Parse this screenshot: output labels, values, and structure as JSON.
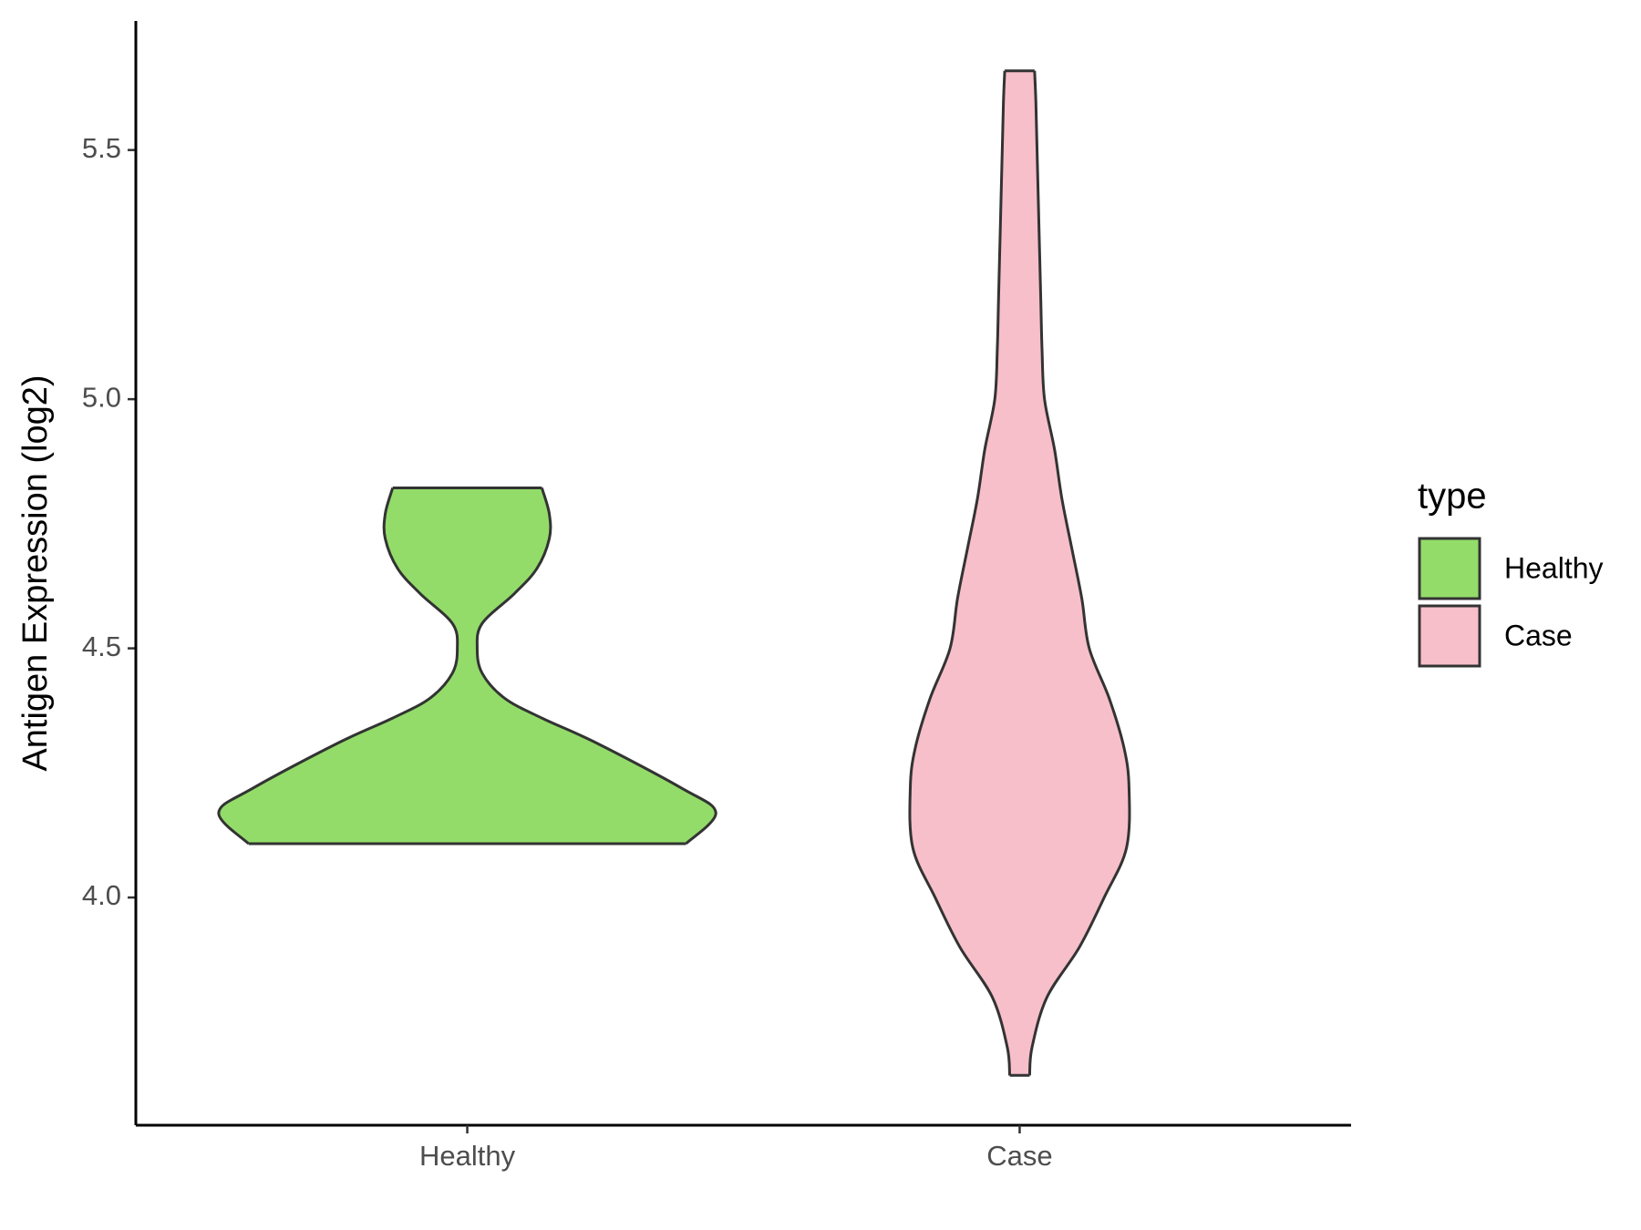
{
  "chart_data": {
    "type": "violin",
    "y_label": "Antigen Expression (log2)",
    "categories": [
      "Healthy",
      "Case"
    ],
    "legend_title": "type",
    "legend": "right",
    "ylim": [
      3.543,
      5.759
    ],
    "yticks": [
      {
        "value": 4.0,
        "label": "4.0"
      },
      {
        "value": 4.5,
        "label": "4.5"
      },
      {
        "value": 5.0,
        "label": "5.0"
      },
      {
        "value": 5.5,
        "label": "5.5"
      }
    ],
    "series": [
      {
        "name": "Healthy",
        "color": "#93dc6a",
        "y": [
          4.108,
          4.17,
          4.22,
          4.31,
          4.36,
          4.4,
          4.45,
          4.5,
          4.55,
          4.61,
          4.66,
          4.72,
          4.77,
          4.822
        ],
        "width": [
          0.88,
          1.0,
          0.86,
          0.52,
          0.3,
          0.15,
          0.06,
          0.04,
          0.06,
          0.19,
          0.28,
          0.33,
          0.33,
          0.3
        ]
      },
      {
        "name": "Case",
        "color": "#f7bfca",
        "y": [
          3.643,
          3.7,
          3.8,
          3.9,
          4.0,
          4.1,
          4.22,
          4.3,
          4.4,
          4.5,
          4.6,
          4.7,
          4.8,
          4.9,
          5.0,
          5.1,
          5.2,
          5.3,
          5.5,
          5.6,
          5.659
        ],
        "width": [
          0.04,
          0.05,
          0.11,
          0.24,
          0.34,
          0.43,
          0.44,
          0.42,
          0.36,
          0.28,
          0.25,
          0.21,
          0.17,
          0.14,
          0.1,
          0.09,
          0.085,
          0.08,
          0.07,
          0.065,
          0.06
        ]
      }
    ]
  }
}
